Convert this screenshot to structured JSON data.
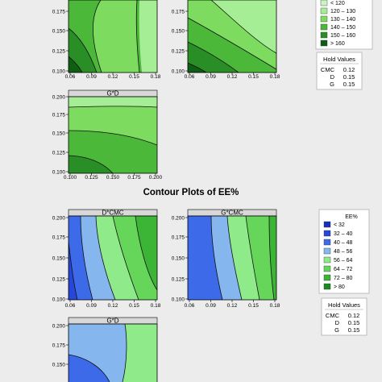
{
  "chart_data": [
    {
      "type": "contour",
      "panels": [
        {
          "id": "top-left",
          "title": "",
          "x_ticks": [
            "0.06",
            "0.09",
            "0.12",
            "0.15",
            "0.18"
          ],
          "y_ticks": [
            "0.175",
            "0.150",
            "0.125",
            "0.100"
          ]
        },
        {
          "id": "top-mid",
          "title": "",
          "x_ticks": [
            "0.06",
            "0.09",
            "0.12",
            "0.15",
            "0.18"
          ],
          "y_ticks": [
            "0.175",
            "0.150",
            "0.125",
            "0.100"
          ]
        },
        {
          "id": "gd-1",
          "title": "G*D",
          "x_ticks": [
            "0.100",
            "0.125",
            "0.150",
            "0.175",
            "0.200"
          ],
          "y_ticks": [
            "0.200",
            "0.175",
            "0.150",
            "0.125",
            "0.100"
          ]
        }
      ],
      "legend": {
        "title": "",
        "entries": [
          {
            "label": "<   120",
            "color": "#c8f5c0"
          },
          {
            "label": "120  –  130",
            "color": "#a6ee96"
          },
          {
            "label": "130  –  140",
            "color": "#7ddc5f"
          },
          {
            "label": "140  –  150",
            "color": "#4cb83a"
          },
          {
            "label": "150  –  160",
            "color": "#2a8e26"
          },
          {
            "label": ">   160",
            "color": "#0e5f14"
          }
        ]
      },
      "hold_values": {
        "title": "Hold Values",
        "rows": [
          {
            "name": "CMC",
            "value": "0.12"
          },
          {
            "name": "D",
            "value": "0.15"
          },
          {
            "name": "G",
            "value": "0.15"
          }
        ]
      }
    },
    {
      "type": "contour",
      "title": "Contour Plots of EE%",
      "panels": [
        {
          "id": "dcmc",
          "title": "D*CMC",
          "x_ticks": [
            "0.06",
            "0.09",
            "0.12",
            "0.15",
            "0.18"
          ],
          "y_ticks": [
            "0.200",
            "0.175",
            "0.150",
            "0.125",
            "0.100"
          ]
        },
        {
          "id": "gcmc",
          "title": "G*CMC",
          "x_ticks": [
            "0.06",
            "0.09",
            "0.12",
            "0.15",
            "0.18"
          ],
          "y_ticks": [
            "0.200",
            "0.175",
            "0.150",
            "0.125",
            "0.100"
          ]
        },
        {
          "id": "gd-2",
          "title": "G*D",
          "x_ticks": [],
          "y_ticks": [
            "0.200",
            "0.175",
            "0.150"
          ]
        }
      ],
      "legend": {
        "title": "EE%",
        "entries": [
          {
            "label": "<   32",
            "color": "#1a2fb8"
          },
          {
            "label": "32  –  40",
            "color": "#2747d8"
          },
          {
            "label": "40  –  48",
            "color": "#3c6ae8"
          },
          {
            "label": "48  –  56",
            "color": "#86b6ee"
          },
          {
            "label": "56  –  64",
            "color": "#8fea8a"
          },
          {
            "label": "64  –  72",
            "color": "#66d65a"
          },
          {
            "label": "72  –  80",
            "color": "#3cb436"
          },
          {
            "label": ">   80",
            "color": "#1b8a22"
          }
        ]
      },
      "hold_values": {
        "title": "Hold Values",
        "rows": [
          {
            "name": "CMC",
            "value": "0.12"
          },
          {
            "name": "D",
            "value": "0.15"
          },
          {
            "name": "G",
            "value": "0.15"
          }
        ]
      }
    }
  ]
}
